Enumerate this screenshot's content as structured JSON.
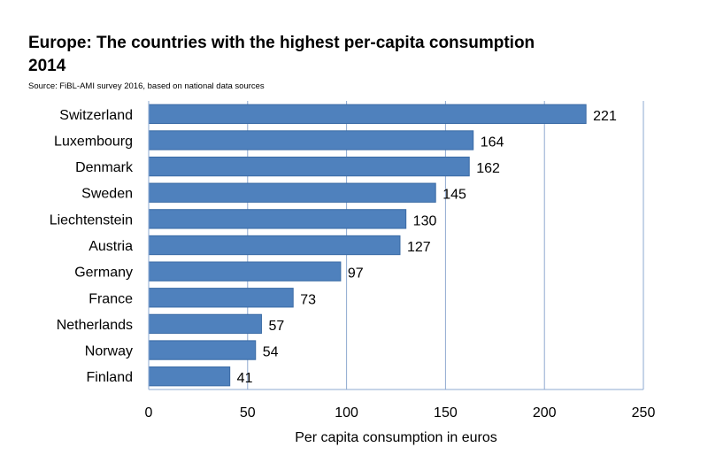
{
  "title_line1": "Europe: The countries with the highest per-capita consumption",
  "title_line2": "2014",
  "source": "Source: FiBL-AMI survey 2016, based on national data sources",
  "chart_data": {
    "type": "bar",
    "orientation": "horizontal",
    "categories": [
      "Switzerland",
      "Luxembourg",
      "Denmark",
      "Sweden",
      "Liechtenstein",
      "Austria",
      "Germany",
      "France",
      "Netherlands",
      "Norway",
      "Finland"
    ],
    "values": [
      221,
      164,
      162,
      145,
      130,
      127,
      97,
      73,
      57,
      54,
      41
    ],
    "xlabel": "Per capita consumption in euros",
    "xlim": [
      0,
      250
    ],
    "xticks": [
      0,
      50,
      100,
      150,
      200,
      250
    ],
    "grid": "vertical",
    "bar_color": "#4F81BD",
    "bar_edge_color": "#3A6BA5",
    "grid_color": "#8EA9D0"
  }
}
